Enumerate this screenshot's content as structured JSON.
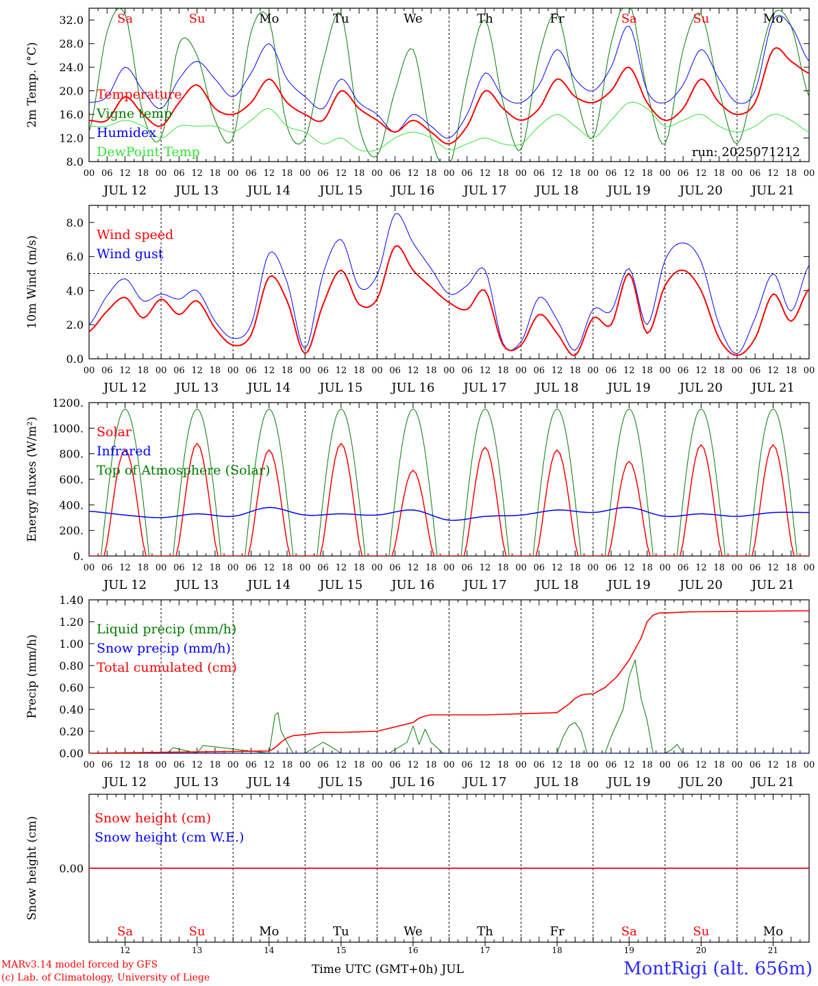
{
  "run_label": "run: 2025071212",
  "days": {
    "weekdays": [
      "Sa",
      "Su",
      "Mo",
      "Tu",
      "We",
      "Th",
      "Fr",
      "Sa",
      "Su",
      "Mo"
    ],
    "weekend_flags": [
      true,
      true,
      false,
      false,
      false,
      false,
      false,
      true,
      true,
      false
    ],
    "date_labels": [
      "JUL 12",
      "JUL 13",
      "JUL 14",
      "JUL 15",
      "JUL 16",
      "JUL 17",
      "JUL 18",
      "JUL 19",
      "JUL 20",
      "JUL 21"
    ],
    "day_numbers": [
      "12",
      "13",
      "14",
      "15",
      "16",
      "17",
      "18",
      "19",
      "20",
      "21"
    ],
    "hour_ticks": [
      "00",
      "06",
      "12",
      "18"
    ],
    "end_hour_label": "00"
  },
  "colors": {
    "red": "#ff0000",
    "blue": "#0000ff",
    "green": "#007a00",
    "lightgreen": "#33e533",
    "weekend": "#ff0000"
  },
  "chart_data": [
    {
      "type": "line",
      "ylabel": "2m Temp. (°C)",
      "ylim": [
        8,
        34
      ],
      "yticks": [
        8,
        12,
        16,
        20,
        24,
        28,
        32
      ],
      "ytick_labels": [
        "8.0",
        "12.0",
        "16.0",
        "20.0",
        "24.0",
        "28.0",
        "32.0"
      ],
      "hours": [
        0,
        6,
        12,
        18,
        24,
        30,
        36,
        42,
        48,
        54,
        60,
        66,
        72,
        78,
        84,
        90,
        96,
        102,
        108,
        114,
        120,
        126,
        132,
        138,
        144,
        150,
        156,
        162,
        168,
        174,
        180,
        186,
        192,
        198,
        204,
        210,
        216,
        222,
        228,
        234,
        240
      ],
      "series": [
        {
          "name": "Temperature",
          "color": "red",
          "values": [
            15,
            15,
            19,
            16,
            14,
            18,
            21,
            17,
            16,
            18,
            22,
            18,
            16,
            15,
            20,
            17,
            15,
            13,
            15,
            13,
            11,
            14,
            20,
            17,
            15,
            17,
            22,
            19,
            18,
            20,
            24,
            18,
            15,
            17,
            22,
            18,
            16,
            18,
            27,
            25,
            23
          ]
        },
        {
          "name": "Vigne temp",
          "color": "green",
          "values": [
            13,
            30,
            33,
            16,
            12,
            28,
            26,
            15,
            12,
            30,
            32,
            14,
            12,
            25,
            33,
            14,
            9,
            20,
            27,
            12,
            7,
            22,
            32,
            18,
            10,
            26,
            33,
            20,
            12,
            28,
            35,
            20,
            11,
            27,
            33,
            20,
            11,
            22,
            33,
            31,
            19
          ]
        },
        {
          "name": "Humidex",
          "color": "blue",
          "values": [
            18,
            19,
            24,
            20,
            17,
            22,
            25,
            22,
            19,
            23,
            28,
            22,
            19,
            17,
            22,
            18,
            16,
            13,
            16,
            14,
            12,
            16,
            23,
            19,
            18,
            21,
            27,
            22,
            20,
            24,
            31,
            20,
            18,
            21,
            27,
            22,
            18,
            20,
            32,
            31,
            25
          ]
        },
        {
          "name": "DewPoint Temp",
          "color": "lightgreen",
          "values": [
            14,
            14,
            15,
            14,
            12,
            14,
            14,
            14,
            13,
            15,
            17,
            14,
            13,
            11,
            12,
            10,
            10,
            12,
            13,
            12,
            10,
            11,
            12,
            11,
            11,
            14,
            16,
            14,
            12,
            15,
            18,
            17,
            14,
            15,
            16,
            14,
            13,
            14,
            16,
            15,
            13
          ]
        }
      ]
    },
    {
      "type": "line",
      "ylabel": "10m Wind (m/s)",
      "ylim": [
        0,
        9
      ],
      "yticks": [
        0,
        2,
        4,
        6,
        8
      ],
      "ytick_labels": [
        "0.0",
        "2.0",
        "4.0",
        "6.0",
        "8.0"
      ],
      "hline": 5,
      "hours": [
        0,
        6,
        12,
        18,
        24,
        30,
        36,
        42,
        48,
        54,
        60,
        66,
        72,
        78,
        84,
        90,
        96,
        102,
        108,
        114,
        120,
        126,
        132,
        138,
        144,
        150,
        156,
        162,
        168,
        174,
        180,
        186,
        192,
        198,
        204,
        210,
        216,
        222,
        228,
        234,
        240
      ],
      "series": [
        {
          "name": "Wind speed",
          "color": "red",
          "values": [
            1.6,
            2.8,
            3.6,
            2.4,
            3.5,
            2.6,
            3.4,
            1.8,
            0.8,
            1.4,
            4.8,
            3.4,
            0.3,
            3.2,
            5.2,
            3.2,
            3.5,
            6.6,
            5.2,
            4.2,
            3.3,
            2.9,
            4.0,
            0.8,
            0.8,
            2.6,
            1.5,
            0.2,
            2.4,
            2.0,
            5.0,
            1.5,
            4.3,
            5.2,
            4.0,
            1.2,
            0.2,
            1.2,
            3.8,
            2.2,
            4.1
          ]
        },
        {
          "name": "Wind gust",
          "color": "blue",
          "values": [
            2.0,
            3.7,
            4.7,
            3.4,
            3.8,
            3.5,
            4.0,
            2.2,
            1.2,
            2.0,
            6.2,
            4.5,
            0.6,
            5.0,
            7.0,
            4.2,
            4.9,
            8.5,
            6.8,
            5.3,
            3.8,
            4.3,
            5.2,
            0.9,
            1.0,
            3.6,
            2.3,
            0.5,
            2.9,
            2.8,
            5.3,
            2.0,
            5.8,
            6.8,
            5.7,
            2.0,
            0.3,
            2.4,
            5.0,
            2.8,
            5.5
          ]
        }
      ]
    },
    {
      "type": "line",
      "ylabel": "Energy fluxes (W/m²)",
      "ylim": [
        0,
        1200
      ],
      "yticks": [
        0,
        200,
        400,
        600,
        800,
        1000,
        1200
      ],
      "ytick_labels": [
        "0.",
        "200.",
        "400.",
        "600.",
        "800.",
        "1000.",
        "1200."
      ],
      "series": [
        {
          "name": "Solar",
          "color": "red",
          "day_peaks": [
            830,
            880,
            830,
            880,
            670,
            850,
            830,
            740,
            870,
            870
          ]
        },
        {
          "name": "Infrared",
          "color": "blue",
          "hours": [
            0,
            12,
            24,
            36,
            48,
            60,
            72,
            84,
            96,
            108,
            120,
            132,
            144,
            156,
            168,
            180,
            192,
            204,
            216,
            228,
            240
          ],
          "values": [
            350,
            320,
            300,
            330,
            310,
            380,
            320,
            330,
            320,
            360,
            280,
            310,
            320,
            360,
            340,
            380,
            310,
            330,
            310,
            340,
            340
          ]
        },
        {
          "name": "Top of Atmosphere (Solar)",
          "color": "green",
          "peak": 1150
        }
      ]
    },
    {
      "type": "line",
      "ylabel": "Precip (mm/h)",
      "ylim": [
        0,
        1.4
      ],
      "yticks": [
        0,
        0.2,
        0.4,
        0.6,
        0.8,
        1.0,
        1.2,
        1.4
      ],
      "ytick_labels": [
        "0.00",
        "0.20",
        "0.40",
        "0.60",
        "0.80",
        "1.00",
        "1.20",
        "1.40"
      ],
      "series": [
        {
          "name": "Liquid precip (mm/h)",
          "color": "green",
          "hours": [
            0,
            26,
            28,
            36,
            38,
            60,
            62,
            63,
            64,
            66,
            68,
            72,
            78,
            80,
            84,
            100,
            106,
            108,
            110,
            112,
            114,
            116,
            118,
            120,
            156,
            158,
            160,
            162,
            164,
            166,
            172,
            174,
            178,
            180,
            182,
            184,
            186,
            188,
            190,
            192,
            194,
            196,
            198,
            200
          ],
          "values": [
            0,
            0,
            0.05,
            0,
            0.07,
            0,
            0.35,
            0.37,
            0.2,
            0.1,
            0,
            0,
            0.1,
            0.07,
            0,
            0,
            0.1,
            0.25,
            0.08,
            0.22,
            0.1,
            0.05,
            0,
            0,
            0,
            0.15,
            0.25,
            0.28,
            0.2,
            0,
            0,
            0.15,
            0.4,
            0.7,
            0.85,
            0.5,
            0.3,
            0,
            0,
            0,
            0.03,
            0.08,
            0,
            0
          ]
        },
        {
          "name": "Snow precip (mm/h)",
          "color": "blue",
          "hours": [
            0,
            240
          ],
          "values": [
            0,
            0
          ]
        },
        {
          "name": "Total cumulated (cm)",
          "color": "red",
          "hours": [
            0,
            30,
            60,
            62,
            64,
            66,
            68,
            72,
            78,
            84,
            96,
            108,
            110,
            112,
            114,
            120,
            132,
            144,
            156,
            160,
            162,
            164,
            166,
            168,
            172,
            176,
            180,
            182,
            184,
            186,
            188,
            190,
            192,
            200,
            240
          ],
          "values": [
            0,
            0.01,
            0.02,
            0.05,
            0.1,
            0.14,
            0.16,
            0.17,
            0.19,
            0.19,
            0.2,
            0.28,
            0.32,
            0.34,
            0.35,
            0.35,
            0.35,
            0.36,
            0.37,
            0.45,
            0.5,
            0.53,
            0.54,
            0.54,
            0.6,
            0.7,
            0.85,
            0.95,
            1.05,
            1.2,
            1.26,
            1.28,
            1.28,
            1.29,
            1.3
          ]
        }
      ]
    },
    {
      "type": "line",
      "ylabel": "Snow height (cm)",
      "ylim": [
        -1,
        1
      ],
      "yticks": [
        0
      ],
      "ytick_labels": [
        "0.00"
      ],
      "series": [
        {
          "name": "Snow height (cm)",
          "color": "red",
          "hours": [
            0,
            240
          ],
          "values": [
            0,
            0
          ]
        },
        {
          "name": "Snow height (cm W.E.)",
          "color": "blue",
          "hours": [
            0,
            240
          ],
          "values": [
            0,
            0
          ]
        }
      ]
    }
  ],
  "footer": {
    "model_line": "MARv3.14 model forced by GFS",
    "copyright_line": "(c) Lab. of Climatology, University of Liege",
    "xlabel_prefix": "Time UTC (GMT+0h)",
    "xlabel_month": "JUL",
    "station": "MontRigi (alt. 656m)"
  }
}
